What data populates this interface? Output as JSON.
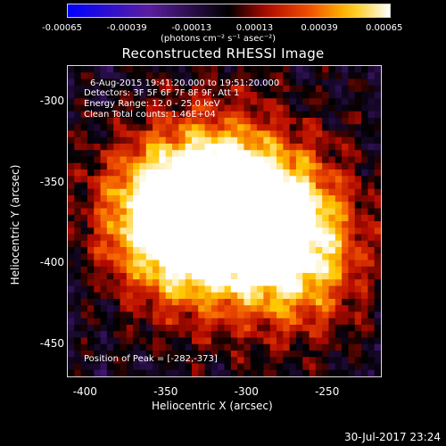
{
  "colorbar": {
    "ticks": [
      "-0.00065",
      "-0.00039",
      "-0.00013",
      "0.00013",
      "0.00039",
      "0.00065"
    ],
    "units": "(photons cm⁻² s⁻¹ asec⁻²)"
  },
  "title": "Reconstructed RHESSI Image",
  "overlay": {
    "time": "6-Aug-2015 19:41:20.000 to 19:51:20.000",
    "detectors": "Detectors: 3F 5F 6F 7F 8F 9F, Att 1",
    "energy": "Energy Range: 12.0 - 25.0 keV",
    "clean": "Clean    Total counts: 1.46E+04",
    "peak": "Position of Peak = [-282,-373]"
  },
  "axes": {
    "xlabel": "Heliocentric X (arcsec)",
    "ylabel": "Heliocentric Y (arcsec)",
    "xticks": [
      "-400",
      "-350",
      "-300",
      "-250"
    ],
    "yticks": [
      "-300",
      "-350",
      "-400",
      "-450"
    ]
  },
  "timestamp": "30-Jul-2017 23:24",
  "chart_data": {
    "type": "heatmap",
    "title": "Reconstructed RHESSI Image",
    "xlabel": "Heliocentric X (arcsec)",
    "ylabel": "Heliocentric Y (arcsec)",
    "xlim": [
      -412,
      -218
    ],
    "ylim": [
      -470,
      -278
    ],
    "colorbar_range": [
      -0.00065,
      0.00065
    ],
    "peak_position": [
      -282,
      -373
    ],
    "bright_sources": [
      {
        "x": -352,
        "y": -368,
        "level": 1.0
      },
      {
        "x": -282,
        "y": -373,
        "level": 1.0
      },
      {
        "x": -318,
        "y": -348,
        "level": 0.85
      },
      {
        "x": -330,
        "y": -392,
        "level": 0.7
      },
      {
        "x": -270,
        "y": -405,
        "level": 0.6
      }
    ],
    "colors": {
      "min": "#0000ff",
      "zero": "#000000",
      "max": "#ffffff"
    }
  }
}
